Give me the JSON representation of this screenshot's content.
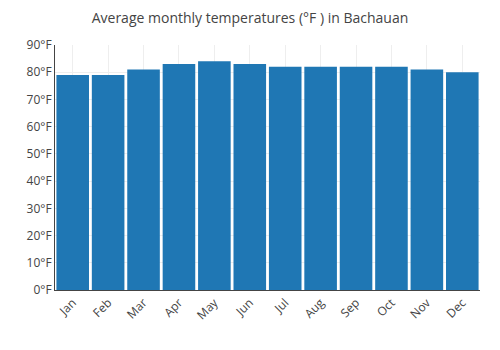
{
  "chart_data": {
    "type": "bar",
    "title": "Average monthly temperatures (°F ) in Bachauan",
    "categories": [
      "Jan",
      "Feb",
      "Mar",
      "Apr",
      "May",
      "Jun",
      "Jul",
      "Aug",
      "Sep",
      "Oct",
      "Nov",
      "Dec"
    ],
    "values": [
      79,
      79,
      81,
      83,
      84,
      83,
      82,
      82,
      82,
      82,
      81,
      80
    ],
    "ylim": [
      0,
      90
    ],
    "yticks": [
      {
        "value": 0,
        "label": "0°F"
      },
      {
        "value": 10,
        "label": "10°F"
      },
      {
        "value": 20,
        "label": "20°F"
      },
      {
        "value": 30,
        "label": "30°F"
      },
      {
        "value": 40,
        "label": "40°F"
      },
      {
        "value": 50,
        "label": "50°F"
      },
      {
        "value": 60,
        "label": "60°F"
      },
      {
        "value": 70,
        "label": "70°F"
      },
      {
        "value": 80,
        "label": "80°F"
      },
      {
        "value": 90,
        "label": "90°F"
      }
    ],
    "grid": true
  }
}
